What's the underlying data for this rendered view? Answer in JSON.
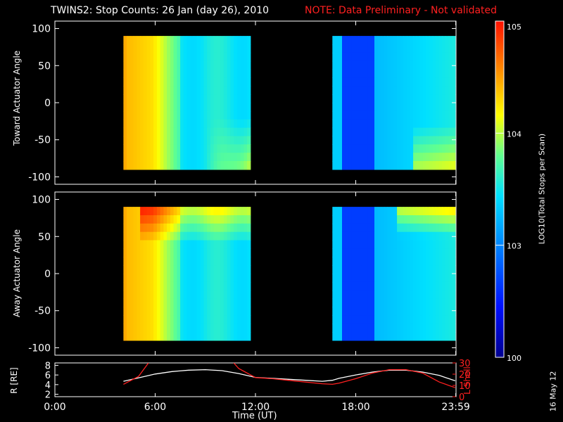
{
  "title": "TWINS2: Stop Counts: 26 Jan (day  26), 2010",
  "note": "NOTE: Data Preliminary - Not validated",
  "note_color": "#ff0000",
  "stamp": "16 May 12",
  "colorbar": {
    "label": "LOG10(Total Stops per Scan)",
    "ticks": [
      "10^5",
      "10^4",
      "10^3",
      "100"
    ],
    "scale": "log",
    "range": [
      100,
      100000
    ]
  },
  "chart_data": [
    {
      "type": "heatmap",
      "ylabel": "Toward Actuator Angle",
      "ylim": [
        -110,
        110
      ],
      "yticks": [
        100,
        50,
        0,
        -50,
        -100
      ],
      "xlim_hours": [
        0,
        24
      ],
      "data_intervals_hours": [
        [
          4.1,
          11.7
        ],
        [
          16.6,
          23.95
        ]
      ],
      "xticks": [
        "0:00",
        "6:00",
        "12:00",
        "18:00",
        "23:59"
      ],
      "colorscale": "rainbow-log"
    },
    {
      "type": "heatmap",
      "ylabel": "Away Actuator Angle",
      "ylim": [
        -110,
        110
      ],
      "yticks": [
        100,
        50,
        0,
        -50,
        -100
      ],
      "xlim_hours": [
        0,
        24
      ],
      "data_intervals_hours": [
        [
          4.1,
          11.7
        ],
        [
          16.6,
          23.95
        ]
      ],
      "xticks": [
        "0:00",
        "6:00",
        "12:00",
        "18:00",
        "23:59"
      ],
      "colorscale": "rainbow-log"
    },
    {
      "type": "line",
      "xlabel": "Time (UT)",
      "xticks": [
        "0:00",
        "6:00",
        "12:00",
        "18:00",
        "23:59"
      ],
      "ylabel_left": "R [RE]",
      "yticks_left": [
        2,
        4,
        6,
        8
      ],
      "ylim_left": [
        1.5,
        8.5
      ],
      "ylabel_right": "L Shell",
      "yticks_right": [
        0,
        10,
        20,
        30
      ],
      "ylim_right": [
        0,
        30
      ],
      "series": [
        {
          "name": "R [RE]",
          "color": "#ffffff",
          "axis": "left",
          "x": [
            4.1,
            5,
            6,
            7,
            8,
            9,
            10,
            11,
            12,
            13,
            14,
            15,
            16,
            16.6,
            17,
            18,
            19,
            20,
            21,
            22,
            23,
            23.95
          ],
          "y": [
            4.7,
            5.4,
            6.2,
            6.7,
            7.0,
            7.1,
            6.9,
            6.3,
            5.5,
            5.3,
            5.1,
            4.9,
            4.7,
            4.9,
            5.3,
            6.0,
            6.6,
            7.0,
            7.0,
            6.6,
            5.9,
            4.8
          ]
        },
        {
          "name": "L Shell",
          "color": "#ff2020",
          "axis": "right",
          "x": [
            4.1,
            5,
            5.6,
            5.6,
            10.7,
            10.7,
            11,
            12,
            13,
            14,
            15,
            16,
            16.6,
            17,
            18,
            19,
            20,
            21,
            22,
            23,
            23.95
          ],
          "y": [
            11,
            18,
            30,
            null,
            null,
            30,
            25,
            17,
            16,
            14.5,
            13,
            11.5,
            11,
            12,
            16,
            21,
            24,
            24,
            21,
            13,
            8
          ]
        }
      ]
    }
  ]
}
